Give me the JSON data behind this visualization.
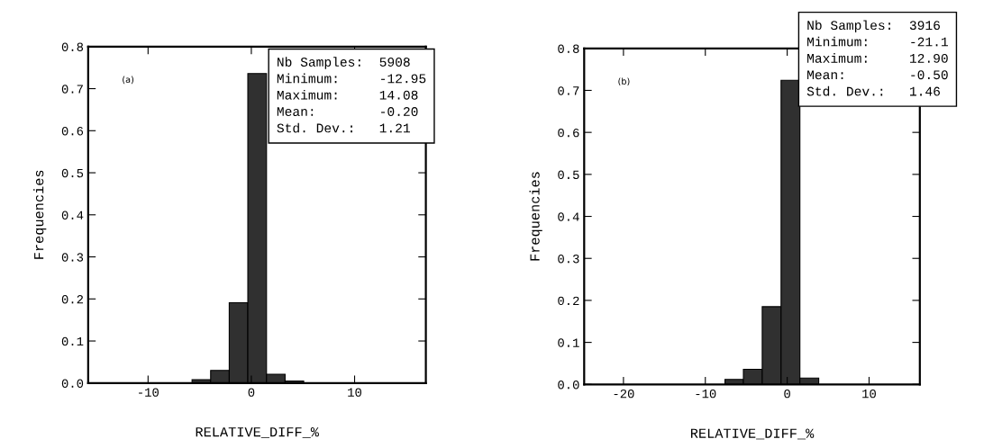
{
  "chart_data": [
    {
      "type": "histogram",
      "xlabel": "RELATIVE_DIFF_%",
      "ylabel": "Frequencies",
      "bins": [
        -5.74,
        -3.94,
        -2.14,
        -0.34,
        1.47,
        3.27,
        5.07
      ],
      "values": [
        0.008,
        0.03,
        0.191,
        0.736,
        0.021,
        0.005
      ],
      "color": "#303030",
      "xlim": [
        -15.8,
        16.9
      ],
      "xticks": [
        -10,
        0,
        10
      ],
      "ylim": [
        0,
        0.8
      ],
      "yticks": [
        {
          "value": 0,
          "label": "0.0"
        },
        0.1,
        0.2,
        0.3,
        0.4,
        0.5,
        0.6,
        0.7,
        0.8
      ],
      "grid": false,
      "annotations": [
        "(a)",
        "Nb Samples:  5908\nMinimum:     -12.95\nMaximum:     14.08\nMean:        -0.20\nStd. Dev.:   1.21"
      ]
    },
    {
      "type": "histogram",
      "xlabel": "RELATIVE_DIFF_%",
      "ylabel": "Frequencies",
      "bins": [
        -7.6,
        -5.35,
        -3.05,
        -0.75,
        1.55,
        3.85
      ],
      "values": [
        0.012,
        0.036,
        0.185,
        0.724,
        0.015
      ],
      "color": "#303030",
      "xlim": [
        -24.8,
        16.2
      ],
      "xticks": [
        -20,
        -10,
        0,
        10
      ],
      "ylim": [
        0,
        0.8
      ],
      "yticks": [
        {
          "value": 0,
          "label": "0.0"
        },
        0.1,
        0.2,
        0.3,
        0.4,
        0.5,
        0.6,
        0.7,
        0.8
      ],
      "grid": false,
      "annotations": [
        "(b)",
        "Nb Samples:  3916\nMinimum:     -21.1\nMaximum:     12.90\nMean:        -0.50\nStd. Dev.:   1.46"
      ]
    }
  ]
}
